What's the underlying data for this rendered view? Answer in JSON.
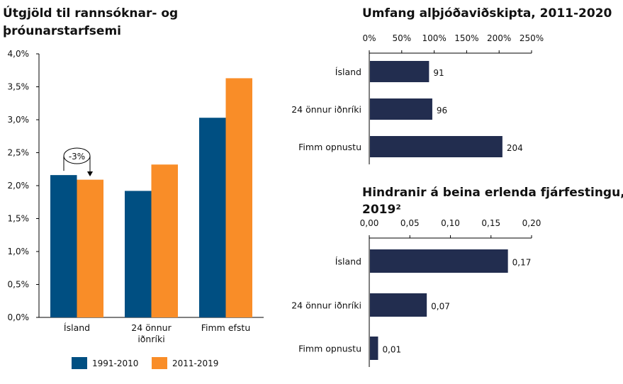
{
  "chart_data": [
    {
      "type": "bar",
      "title_lines": [
        "Útgjöld til rannsóknar- og",
        "þróunarstarfsemi"
      ],
      "categories": [
        "Ísland",
        "24 önnur iðnríki",
        "Fimm efstu"
      ],
      "category_label_lines": [
        [
          "Ísland"
        ],
        [
          "24 önnur",
          "iðnríki"
        ],
        [
          "Fimm efstu"
        ]
      ],
      "series": [
        {
          "name": "1991-2010",
          "color": "#004f82",
          "values": [
            2.16,
            1.92,
            3.03
          ]
        },
        {
          "name": "2011-2019",
          "color": "#f98d28",
          "values": [
            2.09,
            2.32,
            3.63
          ]
        }
      ],
      "ylim": [
        0,
        4
      ],
      "yticks": [
        "0,0%",
        "0,5%",
        "1,0%",
        "1,5%",
        "2,0%",
        "2,5%",
        "3,0%",
        "3,5%",
        "4,0%"
      ],
      "annotation": "-3%",
      "legend": "bottom",
      "grid": false
    },
    {
      "type": "bar",
      "orientation": "horizontal",
      "title_lines": [
        "Umfang alþjóðaviðskipta, 2011-2020"
      ],
      "categories": [
        "Ísland",
        "24 önnur iðnríki",
        "Fimm opnustu"
      ],
      "values": [
        91,
        96,
        204
      ],
      "data_labels": [
        "91",
        "96",
        "204"
      ],
      "color": "#222d4f",
      "xlim": [
        0,
        250
      ],
      "xticks": [
        "0%",
        "50%",
        "100%",
        "150%",
        "200%",
        "250%"
      ],
      "axis_position": "top",
      "grid": false
    },
    {
      "type": "bar",
      "orientation": "horizontal",
      "title_lines": [
        "Hindranir á beina erlenda fjárfestingu,",
        "2019²"
      ],
      "categories": [
        "Ísland",
        "24 önnur iðnríki",
        "Fimm opnustu"
      ],
      "values": [
        0.17,
        0.07,
        0.01
      ],
      "data_labels": [
        "0,17",
        "0,07",
        "0,01"
      ],
      "color": "#222d4f",
      "xlim": [
        0,
        0.2
      ],
      "xticks": [
        "0,00",
        "0,05",
        "0,10",
        "0,15",
        "0,20"
      ],
      "axis_position": "top",
      "grid": false
    }
  ]
}
